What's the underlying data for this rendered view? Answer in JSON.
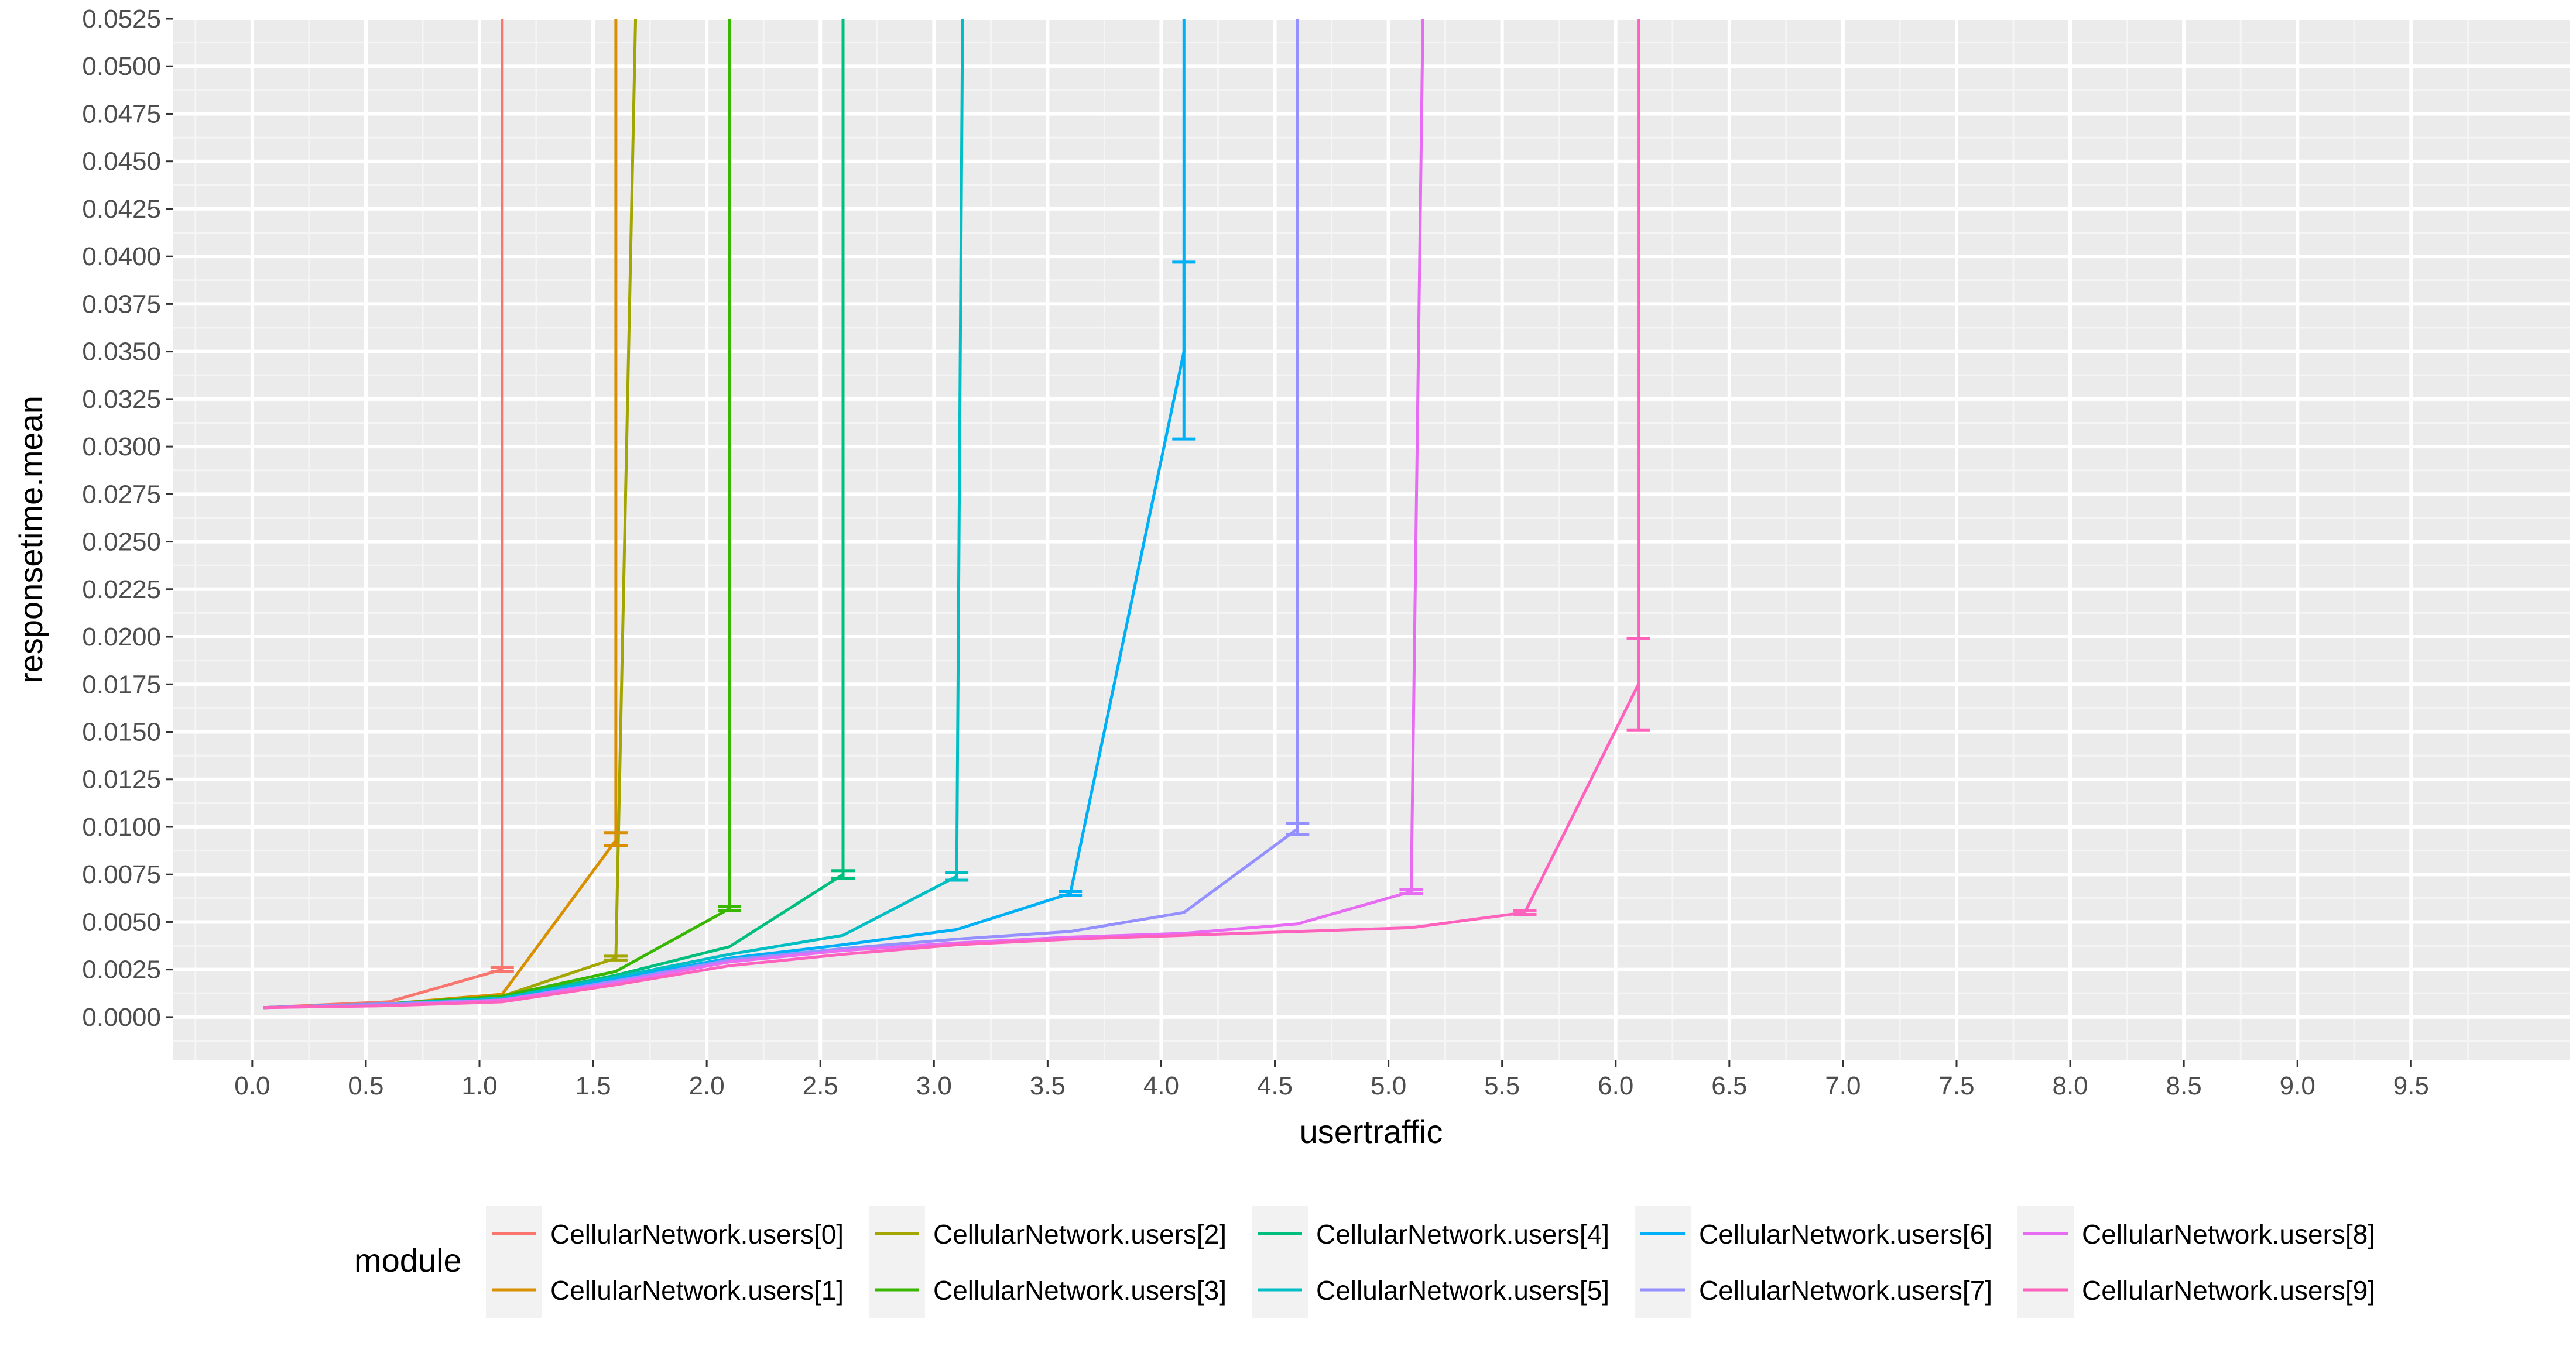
{
  "chart_data": {
    "type": "line",
    "title": "",
    "xlabel": "usertraffic",
    "ylabel": "responsetime.mean",
    "xlim": [
      -0.35,
      10.2
    ],
    "ylim": [
      -0.00228,
      0.0525
    ],
    "x_ticks": [
      "0.0",
      "0.5",
      "1.0",
      "1.5",
      "2.0",
      "2.5",
      "3.0",
      "3.5",
      "4.0",
      "4.5",
      "5.0",
      "5.5",
      "6.0",
      "6.5",
      "7.0",
      "7.5",
      "8.0",
      "8.5",
      "9.0",
      "9.5"
    ],
    "y_ticks": [
      "0.0000",
      "0.0025",
      "0.0050",
      "0.0075",
      "0.0100",
      "0.0125",
      "0.0150",
      "0.0175",
      "0.0200",
      "0.0225",
      "0.0250",
      "0.0275",
      "0.0300",
      "0.0325",
      "0.0350",
      "0.0375",
      "0.0400",
      "0.0425",
      "0.0450",
      "0.0475",
      "0.0500",
      "0.0525"
    ],
    "grid": true,
    "background": "#EBEBEB",
    "legend": {
      "title": "module",
      "position": "bottom",
      "entries": [
        "CellularNetwork.users[0]",
        "CellularNetwork.users[1]",
        "CellularNetwork.users[2]",
        "CellularNetwork.users[3]",
        "CellularNetwork.users[4]",
        "CellularNetwork.users[5]",
        "CellularNetwork.users[6]",
        "CellularNetwork.users[7]",
        "CellularNetwork.users[8]",
        "CellularNetwork.users[9]"
      ]
    },
    "series": [
      {
        "name": "CellularNetwork.users[0]",
        "color": "#F8766D",
        "x": [
          0.05,
          0.6,
          1.1,
          1.1
        ],
        "y": [
          0.0005,
          0.0008,
          0.0025,
          0.06
        ]
      },
      {
        "name": "CellularNetwork.users[1]",
        "color": "#D89000",
        "x": [
          0.05,
          0.6,
          1.1,
          1.6,
          1.6
        ],
        "y": [
          0.0005,
          0.0007,
          0.0012,
          0.0093,
          0.06
        ]
      },
      {
        "name": "CellularNetwork.users[2]",
        "color": "#A3A500",
        "x": [
          0.05,
          0.6,
          1.1,
          1.6,
          1.7
        ],
        "y": [
          0.0005,
          0.0007,
          0.0011,
          0.0031,
          0.06
        ]
      },
      {
        "name": "CellularNetwork.users[3]",
        "color": "#39B600",
        "x": [
          0.05,
          0.6,
          1.1,
          1.6,
          2.1,
          2.1
        ],
        "y": [
          0.0005,
          0.0007,
          0.0011,
          0.0024,
          0.0057,
          0.06
        ]
      },
      {
        "name": "CellularNetwork.users[4]",
        "color": "#00BF7D",
        "x": [
          0.05,
          0.6,
          1.1,
          1.6,
          2.1,
          2.6,
          2.6
        ],
        "y": [
          0.0005,
          0.0007,
          0.001,
          0.0022,
          0.0037,
          0.0075,
          0.06
        ]
      },
      {
        "name": "CellularNetwork.users[5]",
        "color": "#00BFC4",
        "x": [
          0.05,
          0.6,
          1.1,
          1.6,
          2.1,
          2.6,
          3.1,
          3.13
        ],
        "y": [
          0.0005,
          0.0007,
          0.001,
          0.0021,
          0.0033,
          0.0043,
          0.0074,
          0.06
        ]
      },
      {
        "name": "CellularNetwork.users[6]",
        "color": "#00B0F6",
        "x": [
          0.05,
          0.6,
          1.1,
          1.6,
          2.1,
          2.6,
          3.1,
          3.6,
          4.1,
          4.1
        ],
        "y": [
          0.0005,
          0.0007,
          0.0009,
          0.002,
          0.0031,
          0.0038,
          0.0046,
          0.0065,
          0.035,
          0.06
        ]
      },
      {
        "name": "CellularNetwork.users[7]",
        "color": "#9590FF",
        "x": [
          0.05,
          0.6,
          1.1,
          1.6,
          2.1,
          2.6,
          3.1,
          3.6,
          4.1,
          4.6,
          4.6
        ],
        "y": [
          0.0005,
          0.0007,
          0.0009,
          0.0019,
          0.003,
          0.0036,
          0.0041,
          0.0045,
          0.0055,
          0.0099,
          0.06
        ]
      },
      {
        "name": "CellularNetwork.users[8]",
        "color": "#E76BF3",
        "x": [
          0.05,
          0.6,
          1.1,
          1.6,
          2.1,
          2.6,
          3.1,
          3.6,
          4.1,
          4.6,
          5.1,
          5.16
        ],
        "y": [
          0.0005,
          0.0006,
          0.0009,
          0.0018,
          0.0029,
          0.0035,
          0.0039,
          0.0042,
          0.0044,
          0.0049,
          0.0066,
          0.06
        ]
      },
      {
        "name": "CellularNetwork.users[9]",
        "color": "#FF62BC",
        "x": [
          0.05,
          0.6,
          1.1,
          1.6,
          2.1,
          2.6,
          3.1,
          3.6,
          4.1,
          4.6,
          5.1,
          5.6,
          6.1,
          6.1
        ],
        "y": [
          0.0005,
          0.0006,
          0.0008,
          0.0017,
          0.0027,
          0.0033,
          0.0038,
          0.0041,
          0.0043,
          0.0045,
          0.0047,
          0.0055,
          0.0175,
          0.06
        ]
      }
    ],
    "error_bars": [
      {
        "series": 0,
        "x": 1.1,
        "low": 0.0024,
        "high": 0.0026
      },
      {
        "series": 1,
        "x": 1.6,
        "low": 0.009,
        "high": 0.0097
      },
      {
        "series": 2,
        "x": 1.6,
        "low": 0.003,
        "high": 0.0032
      },
      {
        "series": 3,
        "x": 2.1,
        "low": 0.0056,
        "high": 0.0058
      },
      {
        "series": 4,
        "x": 2.6,
        "low": 0.0073,
        "high": 0.0077
      },
      {
        "series": 5,
        "x": 3.1,
        "low": 0.0072,
        "high": 0.0076
      },
      {
        "series": 6,
        "x": 3.6,
        "low": 0.0064,
        "high": 0.0066
      },
      {
        "series": 6,
        "x": 4.1,
        "low": 0.0304,
        "high": 0.0397
      },
      {
        "series": 7,
        "x": 4.6,
        "low": 0.0096,
        "high": 0.0102
      },
      {
        "series": 8,
        "x": 5.1,
        "low": 0.0065,
        "high": 0.0067
      },
      {
        "series": 9,
        "x": 5.6,
        "low": 0.0054,
        "high": 0.0056
      },
      {
        "series": 9,
        "x": 6.1,
        "low": 0.0151,
        "high": 0.0199
      }
    ]
  }
}
